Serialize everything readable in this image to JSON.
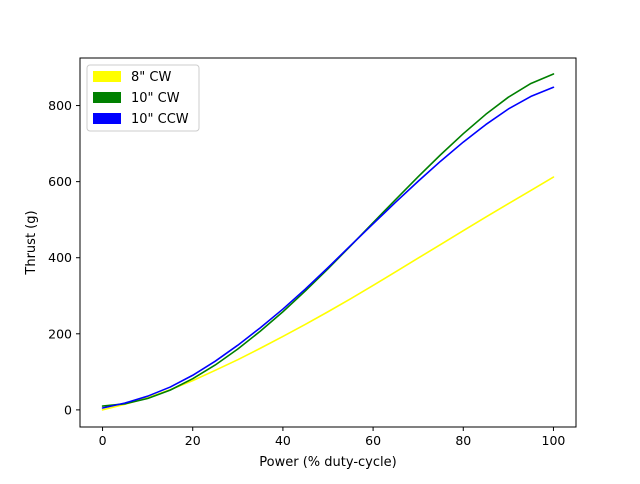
{
  "chart_data": {
    "type": "line",
    "title": "",
    "xlabel": "Power (% duty-cycle)",
    "ylabel": "Thrust (g)",
    "xlim": [
      -5,
      105
    ],
    "ylim": [
      -45,
      925
    ],
    "xticks": [
      0,
      20,
      40,
      60,
      80,
      100
    ],
    "yticks": [
      0,
      200,
      400,
      600,
      800
    ],
    "grid": false,
    "legend_position": "upper-left",
    "series": [
      {
        "name": "8\" CW",
        "color": "#ffff00",
        "x": [
          0,
          5,
          10,
          15,
          20,
          25,
          30,
          35,
          40,
          45,
          50,
          55,
          60,
          65,
          70,
          75,
          80,
          85,
          90,
          95,
          100
        ],
        "y": [
          0,
          15,
          32,
          53,
          77,
          104,
          132,
          162,
          193,
          225,
          258,
          292,
          327,
          363,
          399,
          435,
          471,
          507,
          542,
          577,
          612
        ]
      },
      {
        "name": "10\" CW",
        "color": "#008000",
        "x": [
          0,
          5,
          10,
          15,
          20,
          25,
          30,
          35,
          40,
          45,
          50,
          55,
          60,
          65,
          70,
          75,
          80,
          85,
          90,
          95,
          100
        ],
        "y": [
          10,
          16,
          30,
          52,
          82,
          118,
          160,
          207,
          258,
          313,
          371,
          431,
          492,
          553,
          613,
          671,
          726,
          777,
          822,
          858,
          883
        ]
      },
      {
        "name": "10\" CCW",
        "color": "#0000ff",
        "x": [
          0,
          5,
          10,
          15,
          20,
          25,
          30,
          35,
          40,
          45,
          50,
          55,
          60,
          65,
          70,
          75,
          80,
          85,
          90,
          95,
          100
        ],
        "y": [
          5,
          18,
          36,
          60,
          91,
          128,
          170,
          216,
          265,
          318,
          374,
          432,
          489,
          546,
          601,
          654,
          704,
          750,
          791,
          824,
          848
        ]
      }
    ]
  }
}
